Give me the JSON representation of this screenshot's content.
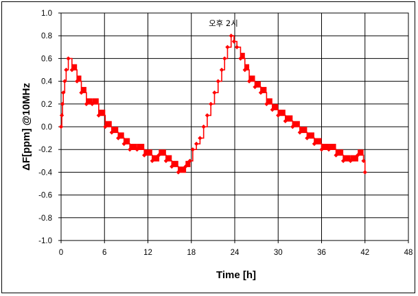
{
  "chart_data": {
    "type": "line",
    "title": "",
    "xlabel": "Time  [h]",
    "ylabel": "ΔF[ppm] @10MHz",
    "xlim": [
      0,
      48
    ],
    "ylim": [
      -1.0,
      1.0
    ],
    "x_ticks": [
      "0",
      "6",
      "12",
      "18",
      "24",
      "30",
      "36",
      "42",
      "48"
    ],
    "y_ticks": [
      "1.0",
      "0.8",
      "0.6",
      "0.4",
      "0.2",
      "0.0",
      "-0.2",
      "-0.4",
      "-0.6",
      "-0.8",
      "-1.0"
    ],
    "grid": true,
    "legend": "none",
    "annotation": {
      "text": "오후 2시",
      "x": 23.0,
      "y": 0.8
    },
    "series": [
      {
        "color": "#ff0000",
        "marker": "diamond",
        "step_shape": "quantized",
        "x": [
          0.0,
          0.1,
          0.2,
          0.3,
          0.5,
          0.7,
          1.0,
          1.5,
          2.2,
          2.8,
          3.5,
          4.3,
          5.2,
          6.1,
          7.0,
          7.9,
          8.7,
          9.5,
          10.5,
          11.5,
          12.6,
          13.5,
          14.5,
          15.3,
          16.2,
          17.2,
          17.8,
          18.2,
          18.7,
          19.2,
          19.7,
          20.2,
          20.7,
          21.2,
          21.7,
          22.2,
          22.6,
          23.0,
          23.5,
          23.9,
          24.3,
          24.8,
          25.4,
          26.0,
          26.8,
          27.6,
          28.4,
          29.2,
          30.0,
          31.0,
          32.0,
          33.0,
          34.0,
          35.0,
          36.0,
          37.0,
          38.0,
          39.0,
          40.0,
          41.0,
          41.8,
          42.0
        ],
        "values": [
          0.0,
          0.1,
          0.2,
          0.3,
          0.4,
          0.5,
          0.6,
          0.5,
          0.4,
          0.3,
          0.2,
          0.2,
          0.1,
          0.0,
          -0.05,
          -0.1,
          -0.15,
          -0.2,
          -0.2,
          -0.25,
          -0.3,
          -0.25,
          -0.3,
          -0.35,
          -0.4,
          -0.35,
          -0.3,
          -0.2,
          -0.15,
          -0.1,
          0.0,
          0.1,
          0.2,
          0.3,
          0.4,
          0.5,
          0.6,
          0.7,
          0.8,
          0.75,
          0.7,
          0.6,
          0.5,
          0.4,
          0.35,
          0.3,
          0.2,
          0.15,
          0.1,
          0.05,
          0.0,
          -0.05,
          -0.1,
          -0.15,
          -0.2,
          -0.2,
          -0.25,
          -0.3,
          -0.3,
          -0.25,
          -0.3,
          -0.4
        ]
      }
    ]
  }
}
